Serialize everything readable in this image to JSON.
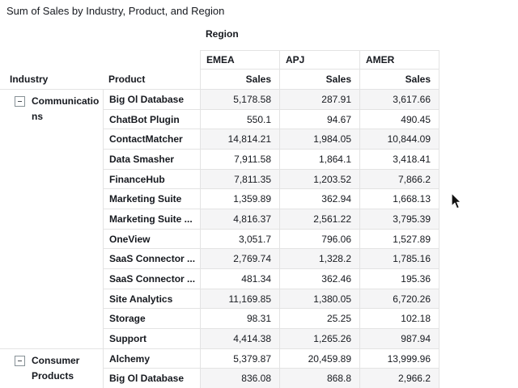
{
  "title": "Sum of Sales by Industry, Product, and Region",
  "pivot": {
    "column_dimension_label": "Region",
    "row_dimension_labels": [
      "Industry",
      "Product"
    ],
    "columns": [
      {
        "name": "EMEA",
        "measure": "Sales"
      },
      {
        "name": "APJ",
        "measure": "Sales"
      },
      {
        "name": "AMER",
        "measure": "Sales"
      }
    ],
    "groups": [
      {
        "industry": "Communications",
        "collapse_icon": "collapse-minus-icon",
        "rows": [
          {
            "product": "Big Ol Database",
            "values": [
              "5,178.58",
              "287.91",
              "3,617.66"
            ]
          },
          {
            "product": "ChatBot Plugin",
            "values": [
              "550.1",
              "94.67",
              "490.45"
            ]
          },
          {
            "product": "ContactMatcher",
            "values": [
              "14,814.21",
              "1,984.05",
              "10,844.09"
            ]
          },
          {
            "product": "Data Smasher",
            "values": [
              "7,911.58",
              "1,864.1",
              "3,418.41"
            ]
          },
          {
            "product": "FinanceHub",
            "values": [
              "7,811.35",
              "1,203.52",
              "7,866.2"
            ]
          },
          {
            "product": "Marketing Suite",
            "values": [
              "1,359.89",
              "362.94",
              "1,668.13"
            ]
          },
          {
            "product": "Marketing Suite ...",
            "values": [
              "4,816.37",
              "2,561.22",
              "3,795.39"
            ]
          },
          {
            "product": "OneView",
            "values": [
              "3,051.7",
              "796.06",
              "1,527.89"
            ]
          },
          {
            "product": "SaaS Connector ...",
            "values": [
              "2,769.74",
              "1,328.2",
              "1,785.16"
            ]
          },
          {
            "product": "SaaS Connector ...",
            "values": [
              "481.34",
              "362.46",
              "195.36"
            ]
          },
          {
            "product": "Site Analytics",
            "values": [
              "11,169.85",
              "1,380.05",
              "6,720.26"
            ]
          },
          {
            "product": "Storage",
            "values": [
              "98.31",
              "25.25",
              "102.18"
            ]
          },
          {
            "product": "Support",
            "values": [
              "4,414.38",
              "1,265.26",
              "987.94"
            ]
          }
        ]
      },
      {
        "industry": "Consumer Products",
        "collapse_icon": "collapse-minus-icon",
        "rows": [
          {
            "product": "Alchemy",
            "values": [
              "5,379.87",
              "20,459.89",
              "13,999.96"
            ]
          },
          {
            "product": "Big Ol Database",
            "values": [
              "836.08",
              "868.8",
              "2,966.2"
            ]
          }
        ]
      }
    ]
  },
  "icons": {
    "collapse": "collapse-minus-icon",
    "cursor": "arrow-cursor"
  },
  "colors": {
    "text": "#16191f",
    "border": "#e3e3e3",
    "stripe_row": "#f5f5f6",
    "background": "#ffffff",
    "icon_border": "#879196"
  }
}
